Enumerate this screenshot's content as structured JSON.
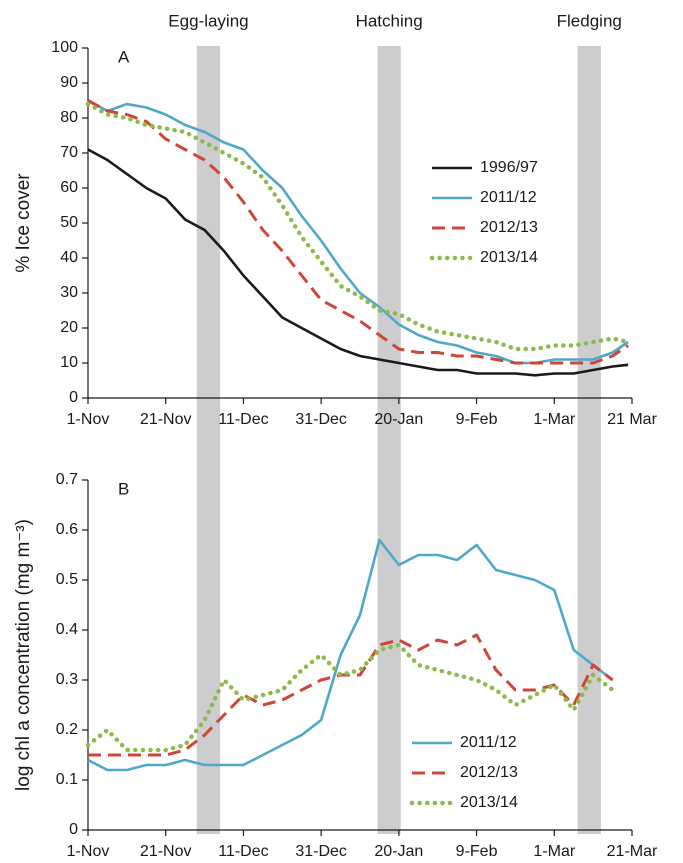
{
  "stages": [
    {
      "label": "Egg-laying",
      "start": 28,
      "end": 34
    },
    {
      "label": "Hatching",
      "start": 74.5,
      "end": 80.5
    },
    {
      "label": "Fledging",
      "start": 126,
      "end": 132
    }
  ],
  "chart_data": [
    {
      "type": "line",
      "panel_label": "A",
      "y_label": "% Ice cover",
      "legend": "center-right",
      "x": [
        0,
        5,
        10,
        15,
        20,
        25,
        30,
        35,
        40,
        45,
        50,
        55,
        60,
        65,
        70,
        75,
        80,
        85,
        90,
        95,
        100,
        105,
        110,
        115,
        120,
        125,
        130,
        135,
        139
      ],
      "xlim": [
        0,
        140
      ],
      "xticks": [
        {
          "value": 0,
          "label": "1-Nov"
        },
        {
          "value": 20,
          "label": "21-Nov"
        },
        {
          "value": 40,
          "label": "11-Dec"
        },
        {
          "value": 60,
          "label": "31-Dec"
        },
        {
          "value": 80,
          "label": "20-Jan"
        },
        {
          "value": 100,
          "label": "9-Feb"
        },
        {
          "value": 120,
          "label": "1-Mar"
        },
        {
          "value": 140,
          "label": "21 Mar"
        }
      ],
      "ylim": [
        0,
        100
      ],
      "yticks": [
        0,
        10,
        20,
        30,
        40,
        50,
        60,
        70,
        80,
        90,
        100
      ],
      "series": [
        {
          "name": "1996/97",
          "color": "#1a1a1a",
          "dash": "solid",
          "values": [
            71,
            68,
            64,
            60,
            57,
            51,
            48,
            42,
            35,
            29,
            23,
            20,
            17,
            14,
            12,
            11,
            10,
            9,
            8,
            8,
            7,
            7,
            7,
            6.5,
            7,
            7,
            8,
            9,
            9.5
          ]
        },
        {
          "name": "2011/12",
          "color": "#4fa8c8",
          "dash": "solid",
          "values": [
            85,
            82,
            84,
            83,
            81,
            78,
            76,
            73,
            71,
            65,
            60,
            52,
            45,
            37,
            30,
            26,
            21,
            18,
            16,
            15,
            13,
            12,
            10,
            10,
            11,
            11,
            11,
            13,
            16
          ]
        },
        {
          "name": "2012/13",
          "color": "#d0453a",
          "dash": "dashed",
          "values": [
            85,
            82,
            81,
            79,
            74,
            71,
            68,
            63,
            56,
            48,
            42,
            35,
            28,
            25,
            22,
            18,
            14,
            13,
            13,
            12,
            12,
            11,
            10,
            10,
            10,
            10,
            10,
            12,
            15
          ]
        },
        {
          "name": "2013/14",
          "color": "#8dba4a",
          "dash": "dotted",
          "values": [
            84,
            81,
            80,
            78,
            77,
            76,
            73,
            70,
            67,
            63,
            55,
            46,
            39,
            32,
            29,
            25,
            24,
            21,
            19,
            18,
            17,
            16,
            14,
            14,
            15,
            15,
            16,
            17,
            16
          ]
        }
      ]
    },
    {
      "type": "line",
      "panel_label": "B",
      "y_label": "log chl a concentration  (mg m⁻³)",
      "legend": "lower-center",
      "x": [
        0,
        5,
        10,
        15,
        20,
        25,
        30,
        35,
        40,
        45,
        50,
        55,
        60,
        65,
        70,
        75,
        80,
        85,
        90,
        95,
        100,
        105,
        110,
        115,
        120,
        125,
        130,
        135
      ],
      "xlim": [
        0,
        140
      ],
      "xticks": [
        {
          "value": 0,
          "label": "1-Nov"
        },
        {
          "value": 20,
          "label": "21-Nov"
        },
        {
          "value": 40,
          "label": "11-Dec"
        },
        {
          "value": 60,
          "label": "31-Dec"
        },
        {
          "value": 80,
          "label": "20-Jan"
        },
        {
          "value": 100,
          "label": "9-Feb"
        },
        {
          "value": 120,
          "label": "1-Mar"
        },
        {
          "value": 140,
          "label": "21-Mar"
        }
      ],
      "ylim": [
        0,
        0.7
      ],
      "yticks": [
        0,
        0.1,
        0.2,
        0.3,
        0.4,
        0.5,
        0.6,
        0.7
      ],
      "series": [
        {
          "name": "2011/12",
          "color": "#4fa8c8",
          "dash": "solid",
          "values": [
            0.14,
            0.12,
            0.12,
            0.13,
            0.13,
            0.14,
            0.13,
            0.13,
            0.13,
            0.15,
            0.17,
            0.19,
            0.22,
            0.35,
            0.43,
            0.58,
            0.53,
            0.55,
            0.55,
            0.54,
            0.57,
            0.52,
            0.51,
            0.5,
            0.48,
            0.36,
            0.33,
            0.3
          ]
        },
        {
          "name": "2012/13",
          "color": "#d0453a",
          "dash": "dashed",
          "values": [
            0.15,
            0.15,
            0.15,
            0.15,
            0.15,
            0.16,
            0.19,
            0.23,
            0.27,
            0.25,
            0.26,
            0.28,
            0.3,
            0.31,
            0.31,
            0.37,
            0.38,
            0.36,
            0.38,
            0.37,
            0.39,
            0.32,
            0.28,
            0.28,
            0.29,
            0.25,
            0.33,
            0.3
          ]
        },
        {
          "name": "2013/14",
          "color": "#8dba4a",
          "dash": "dotted",
          "values": [
            0.17,
            0.2,
            0.16,
            0.16,
            0.16,
            0.17,
            0.22,
            0.3,
            0.26,
            0.27,
            0.28,
            0.32,
            0.35,
            0.31,
            0.32,
            0.36,
            0.37,
            0.33,
            0.32,
            0.31,
            0.3,
            0.28,
            0.25,
            0.27,
            0.29,
            0.24,
            0.31,
            0.28
          ]
        }
      ]
    }
  ]
}
